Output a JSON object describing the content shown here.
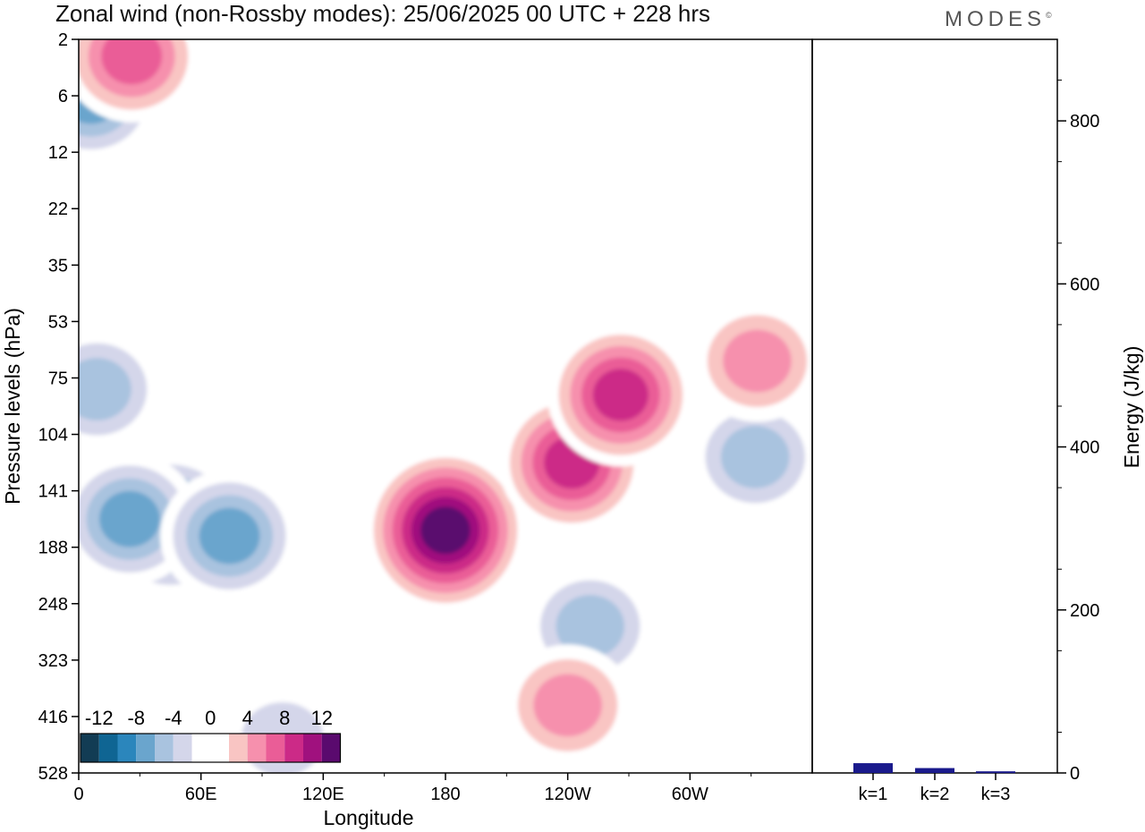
{
  "header": {
    "title": "Zonal wind (non-Rossby modes):  25/06/2025  00 UTC  + 228 hrs",
    "brand": "MODES",
    "brand_mark": "©"
  },
  "chart_data": [
    {
      "type": "heatmap",
      "title": "Zonal wind (non-Rossby modes):  25/06/2025  00 UTC  + 228 hrs",
      "xlabel": "Longitude",
      "ylabel": "Pressure levels (hPa)",
      "x_ticks": [
        "0",
        "60E",
        "120E",
        "180",
        "120W",
        "60W"
      ],
      "x_tick_values": [
        0,
        60,
        120,
        180,
        240,
        300
      ],
      "xlim": [
        0,
        360
      ],
      "y_ticks": [
        "2",
        "6",
        "12",
        "22",
        "35",
        "53",
        "75",
        "104",
        "141",
        "188",
        "248",
        "323",
        "416",
        "528"
      ],
      "y_levels_top_to_bottom": true,
      "colorbar": {
        "labels": [
          "-12",
          "-8",
          "-4",
          "0",
          "4",
          "8",
          "12"
        ],
        "label_values": [
          -12,
          -8,
          -4,
          0,
          4,
          8,
          12
        ],
        "bounds": [
          -14,
          14
        ],
        "step": 2,
        "colors": [
          "#123c54",
          "#0f6593",
          "#2b86bc",
          "#6aa5cd",
          "#a9c3df",
          "#d4d6ea",
          "#ffffff",
          "#ffffff",
          "#f9c5c3",
          "#f690ad",
          "#ea5d97",
          "#cc2a87",
          "#a0117e",
          "#5a0a6e"
        ],
        "placement": "bottom-left"
      },
      "features": [
        {
          "lon": 6,
          "level": 1.0,
          "value": -8,
          "note": "upper negative band"
        },
        {
          "lon": 26,
          "level": 0.3,
          "value": 8
        },
        {
          "lon": 45,
          "level": 8.6,
          "value": -10
        },
        {
          "lon": 25,
          "level": 8.5,
          "value": -8
        },
        {
          "lon": 74,
          "level": 8.8,
          "value": -8
        },
        {
          "lon": 180,
          "level": 8.7,
          "value": 14
        },
        {
          "lon": 242,
          "level": 7.5,
          "value": 10
        },
        {
          "lon": 266,
          "level": 6.3,
          "value": 10
        },
        {
          "lon": 251,
          "level": 10.4,
          "value": -6
        },
        {
          "lon": 332,
          "level": 7.4,
          "value": -6
        },
        {
          "lon": 333,
          "level": 5.7,
          "value": 6
        },
        {
          "lon": 9,
          "level": 6.2,
          "value": -6
        },
        {
          "lon": 240,
          "level": 11.8,
          "value": 6
        },
        {
          "lon": 100,
          "level": 12.4,
          "value": -4
        }
      ]
    },
    {
      "type": "bar",
      "ylabel": "Energy (J/kg)",
      "categories": [
        "k=1",
        "k=2",
        "k=3"
      ],
      "values": [
        12,
        6,
        2
      ],
      "ylim": [
        0,
        900
      ],
      "y_ticks": [
        0,
        200,
        400,
        600,
        800
      ],
      "bar_color": "#1a1a8c"
    }
  ]
}
